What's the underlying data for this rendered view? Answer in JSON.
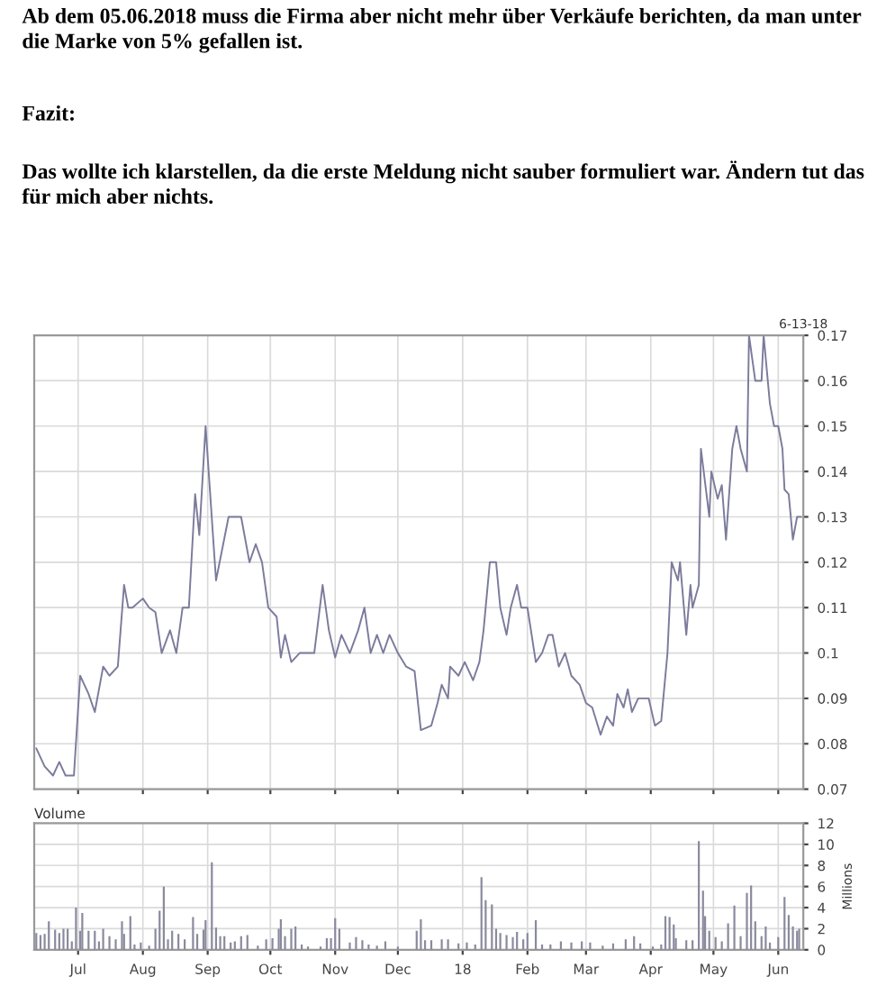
{
  "chart_data": [
    {
      "type": "line",
      "annotations": [
        "Ab dem 05.06.2018 muss die Firma aber nicht mehr über Verkäufe berichten, da man unter die Marke von 5% gefallen ist.",
        "Fazit:",
        "Das wollte ich klarstellen, da die erste Meldung nicht sauber formuliert war. Ändern tut das für mich aber nichts."
      ],
      "subtitle": "6-13-18",
      "x": [
        "2017-06-11",
        "2017-06-15",
        "2017-06-19",
        "2017-06-22",
        "2017-06-25",
        "2017-06-29",
        "2017-07-02",
        "2017-07-04",
        "2017-07-06",
        "2017-07-09",
        "2017-07-13",
        "2017-07-16",
        "2017-07-20",
        "2017-07-23",
        "2017-07-25",
        "2017-07-27",
        "2017-08-01",
        "2017-08-04",
        "2017-08-07",
        "2017-08-10",
        "2017-08-14",
        "2017-08-17",
        "2017-08-20",
        "2017-08-23",
        "2017-08-26",
        "2017-08-28",
        "2017-08-31",
        "2017-09-05",
        "2017-09-11",
        "2017-09-14",
        "2017-09-17",
        "2017-09-21",
        "2017-09-24",
        "2017-09-27",
        "2017-09-30",
        "2017-10-04",
        "2017-10-06",
        "2017-10-08",
        "2017-10-11",
        "2017-10-15",
        "2017-10-22",
        "2017-10-26",
        "2017-10-29",
        "2017-11-01",
        "2017-11-04",
        "2017-11-08",
        "2017-11-12",
        "2017-11-15",
        "2017-11-18",
        "2017-11-21",
        "2017-11-24",
        "2017-11-27",
        "2017-12-01",
        "2017-12-05",
        "2017-12-09",
        "2017-12-12",
        "2017-12-17",
        "2017-12-20",
        "2017-12-22",
        "2017-12-25",
        "2017-12-26",
        "2017-12-30",
        "2018-01-02",
        "2018-01-06",
        "2018-01-09",
        "2018-01-11",
        "2018-01-14",
        "2018-01-17",
        "2018-01-19",
        "2018-01-22",
        "2018-01-24",
        "2018-01-27",
        "2018-01-29",
        "2018-02-01",
        "2018-02-05",
        "2018-02-08",
        "2018-02-11",
        "2018-02-13",
        "2018-02-16",
        "2018-02-19",
        "2018-02-22",
        "2018-02-26",
        "2018-03-01",
        "2018-03-04",
        "2018-03-08",
        "2018-03-11",
        "2018-03-14",
        "2018-03-16",
        "2018-03-19",
        "2018-03-21",
        "2018-03-23",
        "2018-03-26",
        "2018-03-31",
        "2018-04-03",
        "2018-04-06",
        "2018-04-09",
        "2018-04-11",
        "2018-04-14",
        "2018-04-15",
        "2018-04-18",
        "2018-04-20",
        "2018-04-21",
        "2018-04-24",
        "2018-04-25",
        "2018-04-29",
        "2018-04-30",
        "2018-05-03",
        "2018-05-05",
        "2018-05-07",
        "2018-05-10",
        "2018-05-12",
        "2018-05-14",
        "2018-05-17",
        "2018-05-18",
        "2018-05-21",
        "2018-05-24",
        "2018-05-25",
        "2018-05-28",
        "2018-05-30",
        "2018-06-01",
        "2018-06-03",
        "2018-06-04",
        "2018-06-06",
        "2018-06-08",
        "2018-06-10",
        "2018-06-12"
      ],
      "series": [
        {
          "color": "#7b7b9c",
          "values": [
            0.079,
            0.075,
            0.073,
            0.076,
            0.073,
            0.073,
            0.095,
            0.093,
            0.091,
            0.087,
            0.097,
            0.095,
            0.097,
            0.115,
            0.11,
            0.11,
            0.112,
            0.11,
            0.109,
            0.1,
            0.105,
            0.1,
            0.11,
            0.11,
            0.135,
            0.126,
            0.15,
            0.116,
            0.13,
            0.13,
            0.13,
            0.12,
            0.124,
            0.12,
            0.11,
            0.108,
            0.099,
            0.104,
            0.098,
            0.1,
            0.1,
            0.115,
            0.105,
            0.099,
            0.104,
            0.1,
            0.105,
            0.11,
            0.1,
            0.104,
            0.1,
            0.104,
            0.1,
            0.097,
            0.096,
            0.083,
            0.084,
            0.089,
            0.093,
            0.09,
            0.097,
            0.095,
            0.098,
            0.094,
            0.098,
            0.105,
            0.12,
            0.12,
            0.11,
            0.104,
            0.11,
            0.115,
            0.11,
            0.11,
            0.098,
            0.1,
            0.104,
            0.104,
            0.097,
            0.1,
            0.095,
            0.093,
            0.089,
            0.088,
            0.082,
            0.086,
            0.084,
            0.091,
            0.088,
            0.092,
            0.087,
            0.09,
            0.09,
            0.084,
            0.085,
            0.1,
            0.12,
            0.116,
            0.12,
            0.104,
            0.115,
            0.11,
            0.115,
            0.145,
            0.13,
            0.14,
            0.134,
            0.137,
            0.125,
            0.145,
            0.15,
            0.145,
            0.14,
            0.17,
            0.16,
            0.16,
            0.17,
            0.155,
            0.15,
            0.15,
            0.145,
            0.136,
            0.135,
            0.125,
            0.13,
            0.13
          ]
        }
      ],
      "xlim": [
        "2017-06-10",
        "2018-06-13"
      ],
      "xticks": [
        {
          "value": "2017-07-01",
          "label": null
        },
        {
          "value": "2017-08-01",
          "label": null
        },
        {
          "value": "2017-09-01",
          "label": null
        },
        {
          "value": "2017-10-01",
          "label": null
        },
        {
          "value": "2017-11-01",
          "label": null
        },
        {
          "value": "2017-12-01",
          "label": null
        },
        {
          "value": "2018-01-01",
          "label": null
        },
        {
          "value": "2018-02-01",
          "label": null
        },
        {
          "value": "2018-03-01",
          "label": null
        },
        {
          "value": "2018-04-01",
          "label": null
        },
        {
          "value": "2018-05-01",
          "label": null
        },
        {
          "value": "2018-06-01",
          "label": null
        }
      ],
      "ylim": [
        0.07,
        0.17
      ],
      "yticks": [
        0.07,
        0.08,
        0.09,
        0.1,
        0.11,
        0.12,
        0.13,
        0.14,
        0.15,
        0.16,
        0.17
      ],
      "grid": true,
      "tick_labels": "y"
    },
    {
      "type": "bar",
      "title": "Volume",
      "ylabel": "Millions",
      "x": [
        "2017-06-11",
        "2017-06-13",
        "2017-06-15",
        "2017-06-17",
        "2017-06-20",
        "2017-06-22",
        "2017-06-24",
        "2017-06-26",
        "2017-06-28",
        "2017-06-30",
        "2017-07-02",
        "2017-07-03",
        "2017-07-06",
        "2017-07-09",
        "2017-07-11",
        "2017-07-13",
        "2017-07-16",
        "2017-07-19",
        "2017-07-22",
        "2017-07-23",
        "2017-07-26",
        "2017-07-28",
        "2017-07-31",
        "2017-08-04",
        "2017-08-07",
        "2017-08-09",
        "2017-08-11",
        "2017-08-13",
        "2017-08-15",
        "2017-08-18",
        "2017-08-21",
        "2017-08-25",
        "2017-08-27",
        "2017-08-30",
        "2017-08-31",
        "2017-09-03",
        "2017-09-05",
        "2017-09-07",
        "2017-09-09",
        "2017-09-12",
        "2017-09-14",
        "2017-09-17",
        "2017-09-20",
        "2017-09-25",
        "2017-09-29",
        "2017-10-02",
        "2017-10-05",
        "2017-10-06",
        "2017-10-08",
        "2017-10-11",
        "2017-10-13",
        "2017-10-16",
        "2017-10-19",
        "2017-10-25",
        "2017-10-28",
        "2017-10-30",
        "2017-11-01",
        "2017-11-03",
        "2017-11-08",
        "2017-11-11",
        "2017-11-14",
        "2017-11-17",
        "2017-11-21",
        "2017-11-25",
        "2017-12-01",
        "2017-12-10",
        "2017-12-12",
        "2017-12-14",
        "2017-12-17",
        "2017-12-22",
        "2017-12-25",
        "2017-12-30",
        "2018-01-03",
        "2018-01-07",
        "2018-01-10",
        "2018-01-12",
        "2018-01-15",
        "2018-01-17",
        "2018-01-19",
        "2018-01-22",
        "2018-01-25",
        "2018-01-27",
        "2018-01-30",
        "2018-02-01",
        "2018-02-05",
        "2018-02-08",
        "2018-02-12",
        "2018-02-17",
        "2018-02-22",
        "2018-02-27",
        "2018-03-03",
        "2018-03-09",
        "2018-03-14",
        "2018-03-20",
        "2018-03-24",
        "2018-03-27",
        "2018-04-02",
        "2018-04-06",
        "2018-04-08",
        "2018-04-10",
        "2018-04-12",
        "2018-04-13",
        "2018-04-18",
        "2018-04-21",
        "2018-04-24",
        "2018-04-26",
        "2018-04-27",
        "2018-04-29",
        "2018-05-02",
        "2018-05-05",
        "2018-05-08",
        "2018-05-11",
        "2018-05-14",
        "2018-05-17",
        "2018-05-19",
        "2018-05-21",
        "2018-05-24",
        "2018-05-26",
        "2018-05-28",
        "2018-06-01",
        "2018-06-04",
        "2018-06-06",
        "2018-06-08",
        "2018-06-10",
        "2018-06-11"
      ],
      "series": [
        {
          "color": "#8a8a9e",
          "values": [
            1.6,
            1.4,
            1.5,
            2.7,
            1.9,
            1.6,
            2.0,
            2.0,
            0.8,
            4.0,
            1.8,
            3.5,
            1.8,
            1.8,
            0.8,
            2.0,
            1.3,
            1.0,
            2.7,
            1.5,
            3.2,
            0.5,
            0.7,
            0.4,
            2.0,
            3.7,
            6.0,
            1.0,
            1.8,
            1.5,
            1.0,
            3.1,
            1.5,
            1.9,
            2.8,
            8.3,
            2.1,
            1.3,
            1.3,
            0.7,
            0.8,
            1.3,
            1.4,
            0.4,
            1.0,
            1.1,
            2.0,
            2.9,
            1.3,
            2.0,
            2.2,
            0.5,
            0.3,
            0.3,
            1.1,
            1.1,
            3.0,
            2.0,
            0.7,
            1.2,
            0.9,
            0.5,
            0.4,
            0.8,
            0.3,
            1.8,
            2.9,
            0.9,
            0.9,
            1.0,
            1.0,
            0.6,
            0.7,
            0.5,
            6.9,
            4.7,
            4.3,
            2.0,
            1.6,
            1.4,
            1.2,
            1.7,
            1.0,
            1.6,
            2.8,
            0.5,
            0.5,
            0.8,
            0.7,
            0.8,
            0.7,
            0.4,
            0.6,
            1.0,
            1.3,
            0.6,
            0.3,
            0.5,
            3.2,
            3.1,
            2.4,
            1.1,
            0.9,
            0.9,
            10.3,
            5.6,
            3.2,
            1.8,
            1.2,
            0.8,
            2.5,
            4.2,
            1.3,
            5.4,
            6.1,
            2.7,
            1.3,
            2.2,
            0.7,
            1.2,
            5.0,
            3.3,
            2.2,
            1.8,
            2.0
          ]
        }
      ],
      "xlim": [
        "2017-06-10",
        "2018-06-13"
      ],
      "xticks": [
        {
          "value": "2017-07-01",
          "label": "Jul"
        },
        {
          "value": "2017-08-01",
          "label": "Aug"
        },
        {
          "value": "2017-09-01",
          "label": "Sep"
        },
        {
          "value": "2017-10-01",
          "label": "Oct"
        },
        {
          "value": "2017-11-01",
          "label": "Nov"
        },
        {
          "value": "2017-12-01",
          "label": "Dec"
        },
        {
          "value": "2018-01-01",
          "label": "18"
        },
        {
          "value": "2018-02-01",
          "label": "Feb"
        },
        {
          "value": "2018-03-01",
          "label": "Mar"
        },
        {
          "value": "2018-04-01",
          "label": "Apr"
        },
        {
          "value": "2018-05-01",
          "label": "May"
        },
        {
          "value": "2018-06-01",
          "label": "Jun"
        }
      ],
      "ylim": [
        0,
        12
      ],
      "yticks": [
        0,
        2,
        4,
        6,
        8,
        10,
        12
      ],
      "grid": true
    }
  ]
}
